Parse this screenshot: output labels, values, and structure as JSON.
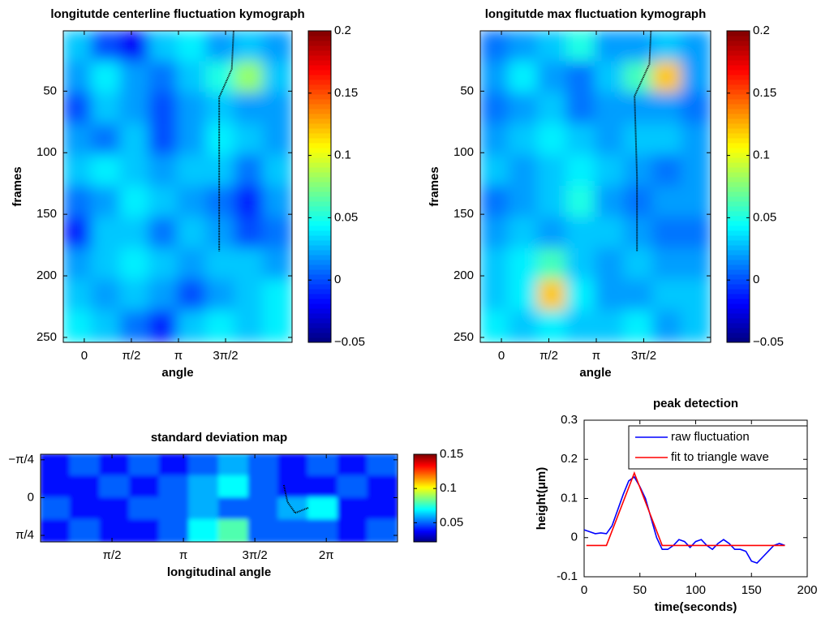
{
  "chart_data": [
    {
      "type": "heatmap",
      "title": "longitutde centerline fluctuation kymograph",
      "xlabel": "angle",
      "ylabel": "frames",
      "xlim": [
        -0.7,
        6.93
      ],
      "ylim": [
        1,
        254
      ],
      "y_direction": "reverse",
      "colormap": "jet",
      "xticks": [
        0,
        {
          "value": 1.5708,
          "label": "π/2"
        },
        {
          "value": 3.1416,
          "label": "π"
        },
        {
          "value": 4.7124,
          "label": "3π/2"
        }
      ],
      "yticks": [
        50,
        100,
        150,
        200,
        250
      ],
      "clim": [
        -0.05,
        0.2
      ],
      "cticks": [
        {
          "value": -0.05,
          "label": "−0.05"
        },
        0,
        0.05,
        0.1,
        0.15,
        0.2
      ],
      "z": [
        [
          0.03,
          0.0,
          -0.02,
          0.03,
          0.04,
          0.02,
          0.03,
          0.02
        ],
        [
          0.02,
          0.04,
          0.02,
          0.01,
          0.03,
          0.05,
          0.08,
          0.03
        ],
        [
          0.0,
          0.03,
          0.02,
          0.0,
          0.02,
          0.03,
          0.02,
          0.02
        ],
        [
          0.02,
          0.01,
          0.03,
          0.0,
          0.02,
          0.04,
          0.03,
          0.02
        ],
        [
          0.03,
          0.04,
          0.03,
          0.02,
          0.03,
          0.03,
          0.01,
          0.03
        ],
        [
          0.01,
          0.02,
          0.04,
          0.03,
          0.02,
          0.01,
          -0.01,
          0.02
        ],
        [
          -0.01,
          0.03,
          0.03,
          0.01,
          0.03,
          0.02,
          0.0,
          0.01
        ],
        [
          0.02,
          0.03,
          0.04,
          0.03,
          0.02,
          0.03,
          0.03,
          0.02
        ],
        [
          0.03,
          0.02,
          0.03,
          0.02,
          0.0,
          0.02,
          0.03,
          0.04
        ],
        [
          0.04,
          0.03,
          0.01,
          -0.01,
          0.03,
          0.04,
          0.03,
          0.04
        ]
      ],
      "trace": {
        "color": "#000000",
        "x": [
          4.98,
          4.92,
          4.5,
          4.5,
          4.5
        ],
        "y": [
          1.3,
          32,
          55,
          120,
          180
        ]
      }
    },
    {
      "type": "heatmap",
      "title": "longitutde max fluctuation kymograph",
      "xlabel": "angle",
      "ylabel": "frames",
      "xlim": [
        -0.7,
        6.93
      ],
      "ylim": [
        1,
        254
      ],
      "y_direction": "reverse",
      "colormap": "jet",
      "xticks": [
        0,
        {
          "value": 1.5708,
          "label": "π/2"
        },
        {
          "value": 3.1416,
          "label": "π"
        },
        {
          "value": 4.7124,
          "label": "3π/2"
        }
      ],
      "yticks": [
        50,
        100,
        150,
        200,
        250
      ],
      "clim": [
        -0.05,
        0.2
      ],
      "cticks": [
        {
          "value": -0.05,
          "label": "−0.05"
        },
        0,
        0.05,
        0.1,
        0.15,
        0.2
      ],
      "z": [
        [
          0.01,
          0.02,
          0.03,
          0.05,
          0.02,
          0.02,
          0.03,
          0.02
        ],
        [
          0.02,
          0.04,
          0.02,
          0.01,
          0.03,
          0.06,
          0.12,
          0.02
        ],
        [
          0.01,
          0.02,
          0.03,
          0.01,
          0.02,
          0.02,
          0.02,
          0.01
        ],
        [
          0.02,
          0.03,
          0.04,
          0.03,
          0.02,
          0.03,
          0.03,
          0.02
        ],
        [
          0.03,
          0.02,
          0.03,
          0.04,
          0.03,
          0.02,
          0.01,
          0.02
        ],
        [
          0.01,
          0.02,
          0.03,
          0.05,
          0.02,
          0.01,
          0.02,
          0.02
        ],
        [
          0.02,
          0.03,
          0.02,
          0.03,
          0.03,
          0.02,
          0.01,
          0.01
        ],
        [
          0.03,
          0.04,
          0.06,
          0.03,
          0.02,
          0.03,
          0.02,
          0.02
        ],
        [
          0.03,
          0.04,
          0.12,
          0.04,
          0.02,
          0.02,
          0.03,
          0.03
        ],
        [
          0.04,
          0.03,
          0.04,
          0.03,
          0.03,
          0.04,
          0.02,
          0.03
        ]
      ],
      "trace": {
        "color": "#000000",
        "x": [
          4.95,
          4.9,
          4.41,
          4.49,
          4.49
        ],
        "y": [
          1.3,
          28,
          54,
          120,
          180
        ]
      }
    },
    {
      "type": "heatmap",
      "title": "standard deviation map",
      "xlabel": "longitudinal angle",
      "xlim": [
        0,
        7.85
      ],
      "ylim": [
        -0.9,
        0.92
      ],
      "y_direction": "reverse",
      "colormap": "jet",
      "xticks": [
        {
          "value": 1.5708,
          "label": "π/2"
        },
        {
          "value": 3.1416,
          "label": "π"
        },
        {
          "value": 4.7124,
          "label": "3π/2"
        },
        {
          "value": 6.2832,
          "label": "2π"
        }
      ],
      "yticks": [
        {
          "value": -0.7854,
          "label": "−π/4"
        },
        0,
        {
          "value": 0.7854,
          "label": "π/4"
        }
      ],
      "clim": [
        0.022,
        0.15
      ],
      "cticks": [
        0.05,
        0.1,
        0.15
      ],
      "z": [
        [
          0.04,
          0.05,
          0.04,
          0.05,
          0.04,
          0.05,
          0.06,
          0.05,
          0.04,
          0.05,
          0.04,
          0.05
        ],
        [
          0.04,
          0.04,
          0.05,
          0.04,
          0.05,
          0.06,
          0.07,
          0.05,
          0.04,
          0.04,
          0.05,
          0.04
        ],
        [
          0.05,
          0.04,
          0.04,
          0.05,
          0.05,
          0.06,
          0.05,
          0.05,
          0.06,
          0.07,
          0.04,
          0.04
        ],
        [
          0.04,
          0.05,
          0.04,
          0.04,
          0.05,
          0.07,
          0.08,
          0.05,
          0.05,
          0.05,
          0.04,
          0.05
        ]
      ],
      "trace": {
        "color": "#000000",
        "x": [
          5.35,
          5.43,
          5.6,
          5.89
        ],
        "y": [
          -0.26,
          0.09,
          0.32,
          0.21
        ]
      }
    },
    {
      "type": "line",
      "title": "peak detection",
      "xlabel": "time(seconds)",
      "ylabel": "height(μm)",
      "xlim": [
        0,
        200
      ],
      "ylim": [
        -0.1,
        0.3
      ],
      "xticks": [
        0,
        50,
        100,
        150,
        200
      ],
      "yticks": [
        -0.1,
        0,
        0.1,
        0.2,
        0.3
      ],
      "legend": "northeast",
      "series": [
        {
          "name": "raw fluctuation",
          "color": "#0000ff",
          "x": [
            0,
            5,
            10,
            15,
            20,
            25,
            30,
            35,
            40,
            45,
            50,
            55,
            60,
            65,
            70,
            75,
            80,
            85,
            90,
            95,
            100,
            105,
            110,
            115,
            120,
            125,
            130,
            135,
            140,
            145,
            150,
            155,
            160,
            165,
            170,
            175,
            180
          ],
          "values": [
            0.02,
            0.015,
            0.01,
            0.012,
            0.01,
            0.03,
            0.07,
            0.11,
            0.145,
            0.155,
            0.13,
            0.1,
            0.05,
            0.0,
            -0.03,
            -0.03,
            -0.02,
            -0.005,
            -0.01,
            -0.025,
            -0.01,
            -0.005,
            -0.02,
            -0.03,
            -0.015,
            -0.005,
            -0.015,
            -0.03,
            -0.03,
            -0.035,
            -0.06,
            -0.065,
            -0.05,
            -0.035,
            -0.02,
            -0.015,
            -0.02
          ]
        },
        {
          "name": "fit to triangle wave",
          "color": "#ff0000",
          "x": [
            2,
            20,
            45,
            70,
            180
          ],
          "values": [
            -0.02,
            -0.02,
            0.165,
            -0.02,
            -0.02
          ]
        }
      ]
    }
  ]
}
